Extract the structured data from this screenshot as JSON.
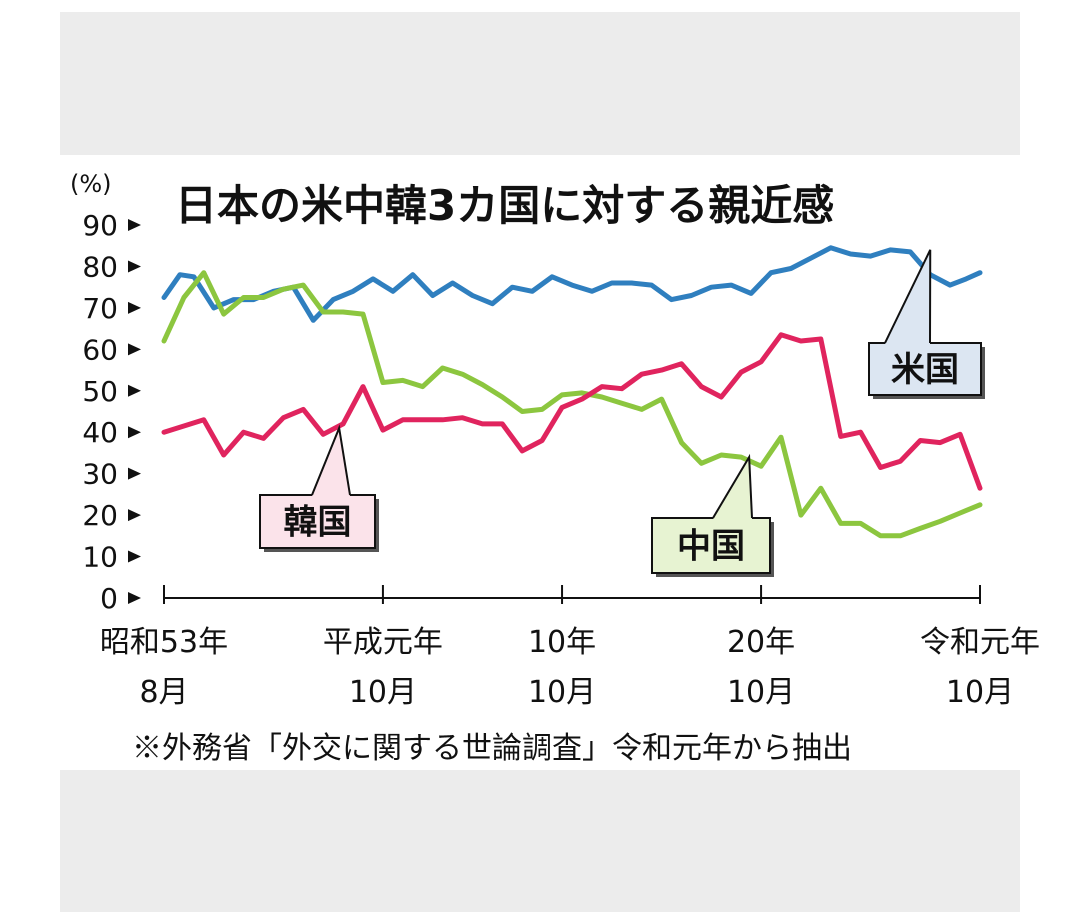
{
  "chart_data": {
    "type": "line",
    "title": "日本の米中韓3カ国に対する親近感",
    "unit": "(%)",
    "ylim": [
      0,
      90
    ],
    "yticks": [
      0,
      10,
      20,
      30,
      40,
      50,
      60,
      70,
      80,
      90
    ],
    "xlim": [
      1978,
      2019
    ],
    "x_ticks": [
      {
        "x": 1978,
        "line1": "昭和53年",
        "line2": "8月"
      },
      {
        "x": 1989,
        "line1": "平成元年",
        "line2": "10月"
      },
      {
        "x": 1998,
        "line1": "10年",
        "line2": "10月"
      },
      {
        "x": 2008,
        "line1": "20年",
        "line2": "10月"
      },
      {
        "x": 2019,
        "line1": "令和元年",
        "line2": "10月"
      }
    ],
    "note": "※外務省「外交に関する世論調査」令和元年から抽出",
    "grid": false,
    "series": [
      {
        "name": "米国",
        "color": "#2f7fbf",
        "x": [
          1978,
          1978.8,
          1979.5,
          1980.5,
          1981.5,
          1982.5,
          1983.5,
          1984.5,
          1985.5,
          1986.5,
          1987.5,
          1988.5,
          1989.5,
          1990.5,
          1991.5,
          1992.5,
          1993.5,
          1994.5,
          1995.5,
          1996.5,
          1997.5,
          1998.5,
          1999.5,
          2000.5,
          2001.5,
          2002.5,
          2003.5,
          2004.5,
          2005.5,
          2006.5,
          2007.5,
          2008.5,
          2009.5,
          2010.5,
          2011.5,
          2012.5,
          2013.5,
          2014.5,
          2015.5,
          2016.5,
          2017.5,
          2018.3,
          2019
        ],
        "values": [
          72.5,
          78,
          77.5,
          70,
          72,
          72,
          74,
          75,
          67,
          72,
          74,
          77,
          74,
          78,
          73,
          76,
          73,
          71,
          75,
          74,
          77.5,
          75.5,
          74,
          76,
          76,
          75.5,
          72,
          73,
          75,
          75.5,
          73.5,
          78.5,
          79.5,
          82,
          84.5,
          83,
          82.5,
          84,
          83.5,
          78,
          75.5,
          77,
          78.5
        ]
      },
      {
        "name": "中国",
        "color": "#8cc63f",
        "x": [
          1978,
          1979,
          1980,
          1981,
          1982,
          1983,
          1984,
          1985,
          1986,
          1987,
          1988,
          1989,
          1990,
          1991,
          1992,
          1993,
          1994,
          1995,
          1996,
          1997,
          1998,
          1999,
          2000,
          2001,
          2002,
          2003,
          2004,
          2005,
          2006,
          2007,
          2008,
          2009,
          2010,
          2011,
          2012,
          2013,
          2014,
          2015,
          2016,
          2017,
          2018,
          2019
        ],
        "values": [
          62,
          72.5,
          78.5,
          68.5,
          72.5,
          72.5,
          74.5,
          75.5,
          69,
          69,
          68.5,
          52,
          52.5,
          51,
          55.5,
          54,
          51.5,
          48.5,
          45,
          45.5,
          49,
          49.5,
          48.5,
          47,
          45.5,
          48,
          37.5,
          32.5,
          34.5,
          34,
          31.8,
          38.8,
          20,
          26.5,
          18,
          18,
          15,
          15,
          16.8,
          18.5,
          20.5,
          22.5
        ]
      },
      {
        "name": "韓国",
        "color": "#e0245e",
        "x": [
          1978,
          1979,
          1980,
          1981,
          1982,
          1983,
          1984,
          1985,
          1986,
          1987,
          1988,
          1989,
          1990,
          1991,
          1992,
          1993,
          1994,
          1995,
          1996,
          1997,
          1998,
          1999,
          2000,
          2001,
          2002,
          2003,
          2004,
          2005,
          2006,
          2007,
          2008,
          2009,
          2010,
          2011,
          2012,
          2013,
          2014,
          2015,
          2016,
          2017,
          2018,
          2019
        ],
        "values": [
          40,
          41.5,
          43,
          34.5,
          40,
          38.5,
          43.5,
          45.5,
          39.5,
          42,
          51,
          40.5,
          43,
          43,
          43,
          43.5,
          42,
          42,
          35.5,
          38,
          46,
          48,
          51,
          50.5,
          54,
          55,
          56.5,
          51,
          48.5,
          54.5,
          57,
          63.5,
          62,
          62.5,
          39,
          40,
          31.5,
          33,
          38,
          37.5,
          39.5,
          26.5
        ]
      }
    ],
    "callouts": [
      {
        "series": "米国",
        "label": "米国",
        "bg": "#dce6f2",
        "point_x": 2016.5,
        "point_y": 84
      },
      {
        "series": "韓国",
        "label": "韓国",
        "bg": "#fbe3ea",
        "point_x": 1986.8,
        "point_y": 41
      },
      {
        "series": "中国",
        "label": "中国",
        "bg": "#e7f3d2",
        "point_x": 2007.4,
        "point_y": 34
      }
    ]
  }
}
